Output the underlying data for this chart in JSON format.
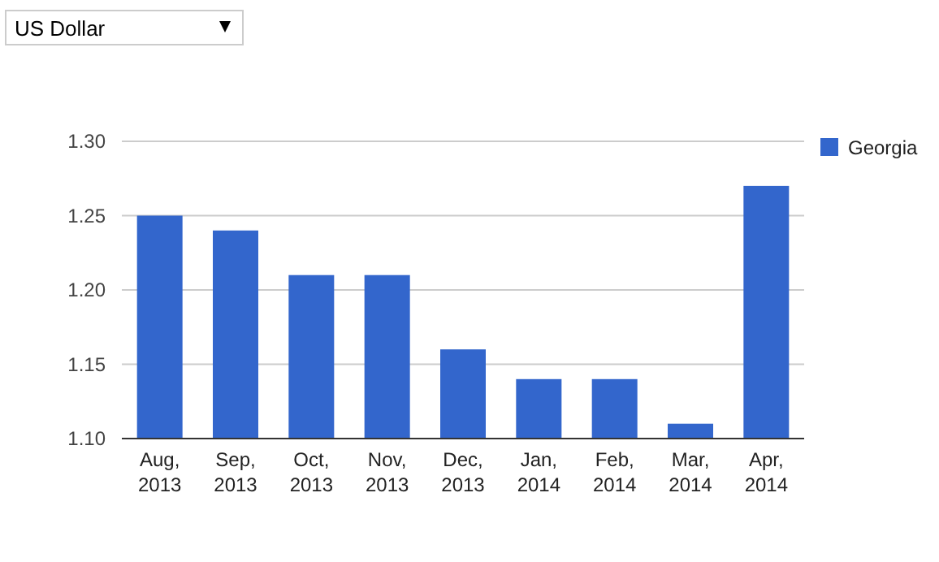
{
  "chart_data": {
    "type": "bar",
    "categories": [
      "Aug, 2013",
      "Sep, 2013",
      "Oct, 2013",
      "Nov, 2013",
      "Dec, 2013",
      "Jan, 2014",
      "Feb, 2014",
      "Mar, 2014",
      "Apr, 2014"
    ],
    "series": [
      {
        "name": "Georgia",
        "color": "#3366cc",
        "values": [
          1.25,
          1.24,
          1.21,
          1.21,
          1.16,
          1.14,
          1.14,
          1.11,
          1.27
        ]
      }
    ],
    "ylim": [
      1.1,
      1.3
    ],
    "yticks": [
      {
        "value": 1.1,
        "label": "1.10"
      },
      1.15,
      {
        "value": 1.2,
        "label": "1.20"
      },
      1.25,
      {
        "value": 1.3,
        "label": "1.30"
      }
    ],
    "grid": "y",
    "legend": "top right",
    "annotations": [
      "US Dollar"
    ]
  }
}
